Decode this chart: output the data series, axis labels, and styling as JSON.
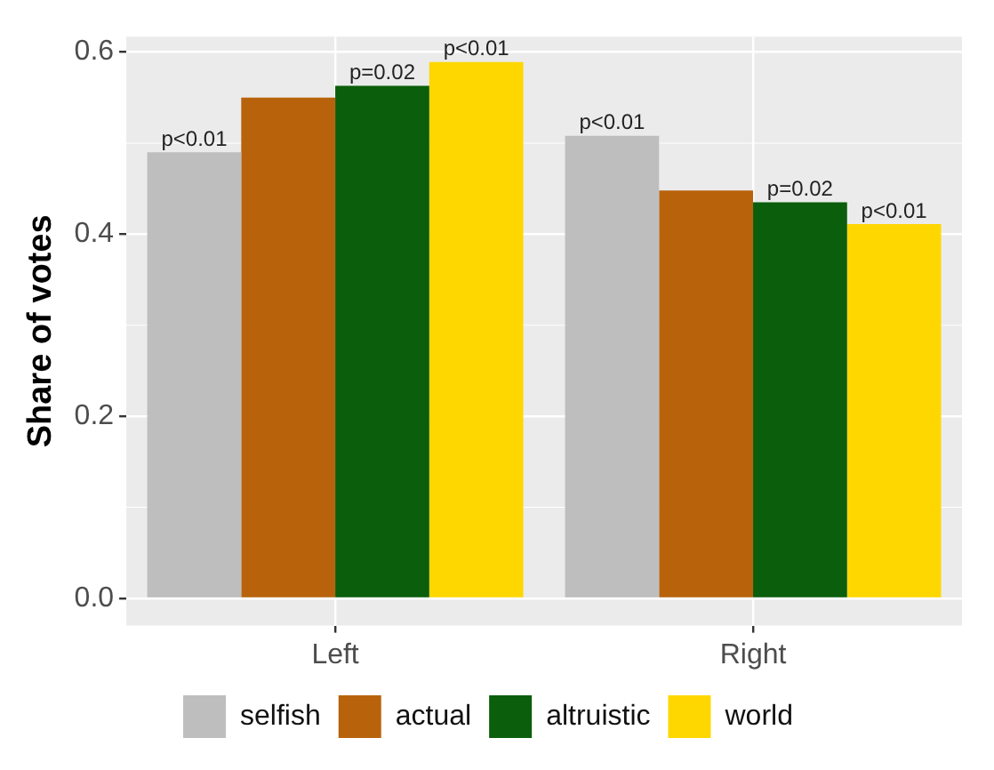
{
  "chart_data": {
    "type": "bar",
    "ylabel": "Share of votes",
    "categories": [
      "Left",
      "Right"
    ],
    "series": [
      {
        "name": "selfish",
        "color": "#bebebe",
        "values": [
          0.49,
          0.508
        ]
      },
      {
        "name": "actual",
        "color": "#b8630c",
        "values": [
          0.55,
          0.448
        ]
      },
      {
        "name": "altruistic",
        "color": "#0b5e0b",
        "values": [
          0.563,
          0.435
        ]
      },
      {
        "name": "world",
        "color": "#fed700",
        "values": [
          0.589,
          0.411
        ]
      }
    ],
    "annotations": [
      {
        "text": "p<0.01",
        "y": 0.49
      },
      {
        "text": "p=0.02",
        "y": 0.563
      },
      {
        "text": "p<0.01",
        "y": 0.589
      },
      {
        "text": "p<0.01",
        "y": 0.508
      },
      {
        "text": "p=0.02",
        "y": 0.435
      },
      {
        "text": "p<0.01",
        "y": 0.411
      }
    ],
    "ylim": [
      -0.03,
      0.617
    ],
    "yticks": [
      {
        "value": 0,
        "label": "0.0"
      },
      {
        "value": 0.2,
        "label": "0.2"
      },
      {
        "value": 0.4,
        "label": "0.4"
      },
      {
        "value": 0.6,
        "label": "0.6"
      }
    ],
    "grid": true,
    "legend": "bottom"
  }
}
